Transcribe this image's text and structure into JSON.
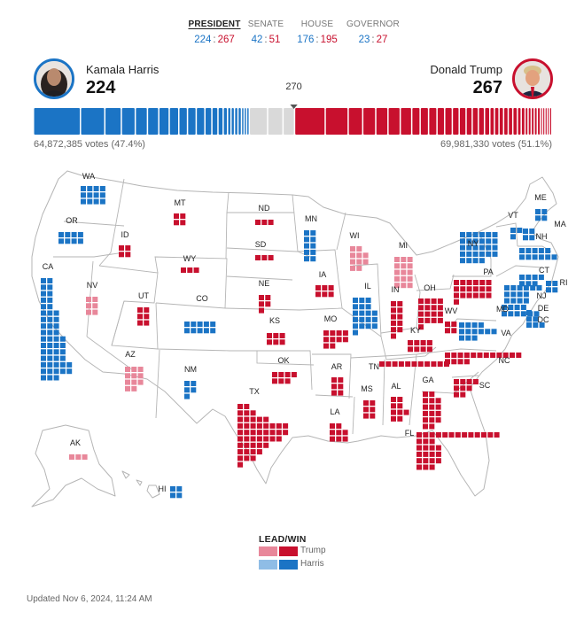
{
  "tabs": [
    {
      "label": "PRESIDENT",
      "dem": "224",
      "rep": "267",
      "active": true
    },
    {
      "label": "SENATE",
      "dem": "42",
      "rep": "51",
      "active": false
    },
    {
      "label": "HOUSE",
      "dem": "176",
      "rep": "195",
      "active": false
    },
    {
      "label": "GOVERNOR",
      "dem": "23",
      "rep": "27",
      "active": false
    }
  ],
  "separator": ":",
  "candidates": {
    "dem": {
      "name": "Kamala Harris",
      "ev": "224",
      "votes": "64,872,385 votes (47.4%)",
      "color": "#1b74c5"
    },
    "rep": {
      "name": "Donald Trump",
      "ev": "267",
      "votes": "69,981,330 votes (51.1%)",
      "color": "#c8102e"
    }
  },
  "threshold": "270",
  "bar": {
    "dem_won": 224,
    "dem_lead": 0,
    "uncalled": 47,
    "rep_lead": 0,
    "rep_won": 267,
    "total": 538
  },
  "colors": {
    "harris_win": "#1b74c5",
    "harris_lead": "#8fbde6",
    "trump_win": "#c8102e",
    "trump_lead": "#e8879a",
    "uncalled": "#d9d9d9",
    "border": "#b5b5b5"
  },
  "states": [
    {
      "code": "WA",
      "result": "harris_win",
      "ev": 12
    },
    {
      "code": "OR",
      "result": "harris_win",
      "ev": 8
    },
    {
      "code": "CA",
      "result": "harris_win",
      "ev": 54
    },
    {
      "code": "NV",
      "result": "trump_lead",
      "ev": 6
    },
    {
      "code": "ID",
      "result": "trump_win",
      "ev": 4
    },
    {
      "code": "MT",
      "result": "trump_win",
      "ev": 4
    },
    {
      "code": "WY",
      "result": "trump_win",
      "ev": 3
    },
    {
      "code": "UT",
      "result": "trump_win",
      "ev": 6
    },
    {
      "code": "CO",
      "result": "harris_win",
      "ev": 10
    },
    {
      "code": "AZ",
      "result": "trump_lead",
      "ev": 11
    },
    {
      "code": "NM",
      "result": "harris_win",
      "ev": 5
    },
    {
      "code": "ND",
      "result": "trump_win",
      "ev": 3
    },
    {
      "code": "SD",
      "result": "trump_win",
      "ev": 3
    },
    {
      "code": "NE",
      "result": "trump_win",
      "ev": 5
    },
    {
      "code": "KS",
      "result": "trump_win",
      "ev": 6
    },
    {
      "code": "OK",
      "result": "trump_win",
      "ev": 7
    },
    {
      "code": "TX",
      "result": "trump_win",
      "ev": 40
    },
    {
      "code": "MN",
      "result": "harris_win",
      "ev": 10
    },
    {
      "code": "IA",
      "result": "trump_win",
      "ev": 6
    },
    {
      "code": "MO",
      "result": "trump_win",
      "ev": 10
    },
    {
      "code": "AR",
      "result": "trump_win",
      "ev": 6
    },
    {
      "code": "LA",
      "result": "trump_win",
      "ev": 8
    },
    {
      "code": "WI",
      "result": "trump_lead",
      "ev": 10
    },
    {
      "code": "IL",
      "result": "harris_win",
      "ev": 19
    },
    {
      "code": "MI",
      "result": "trump_lead",
      "ev": 15
    },
    {
      "code": "IN",
      "result": "trump_win",
      "ev": 11
    },
    {
      "code": "OH",
      "result": "trump_win",
      "ev": 17
    },
    {
      "code": "KY",
      "result": "trump_win",
      "ev": 8
    },
    {
      "code": "TN",
      "result": "trump_win",
      "ev": 11
    },
    {
      "code": "MS",
      "result": "trump_win",
      "ev": 6
    },
    {
      "code": "AL",
      "result": "trump_win",
      "ev": 9
    },
    {
      "code": "GA",
      "result": "trump_win",
      "ev": 16
    },
    {
      "code": "FL",
      "result": "trump_win",
      "ev": 30
    },
    {
      "code": "SC",
      "result": "trump_win",
      "ev": 9
    },
    {
      "code": "NC",
      "result": "trump_win",
      "ev": 16
    },
    {
      "code": "VA",
      "result": "harris_win",
      "ev": 13
    },
    {
      "code": "WV",
      "result": "trump_win",
      "ev": 4
    },
    {
      "code": "PA",
      "result": "trump_win",
      "ev": 19
    },
    {
      "code": "NY",
      "result": "harris_win",
      "ev": 28
    },
    {
      "code": "VT",
      "result": "harris_win",
      "ev": 3
    },
    {
      "code": "NH",
      "result": "harris_win",
      "ev": 4
    },
    {
      "code": "ME",
      "result": "harris_win",
      "ev": 4
    },
    {
      "code": "MA",
      "result": "harris_win",
      "ev": 11
    },
    {
      "code": "RI",
      "result": "harris_win",
      "ev": 4
    },
    {
      "code": "CT",
      "result": "harris_win",
      "ev": 7
    },
    {
      "code": "NJ",
      "result": "harris_win",
      "ev": 14
    },
    {
      "code": "DE",
      "result": "harris_win",
      "ev": 3
    },
    {
      "code": "MD",
      "result": "harris_win",
      "ev": 10
    },
    {
      "code": "DC",
      "result": "harris_win",
      "ev": 3
    },
    {
      "code": "AK",
      "result": "trump_lead",
      "ev": 3
    },
    {
      "code": "HI",
      "result": "harris_win",
      "ev": 4
    }
  ],
  "legend": {
    "title": "LEAD/WIN",
    "items": [
      {
        "label": "Trump"
      },
      {
        "label": "Harris"
      }
    ]
  },
  "updated": "Updated Nov 6, 2024, 11:24 AM"
}
